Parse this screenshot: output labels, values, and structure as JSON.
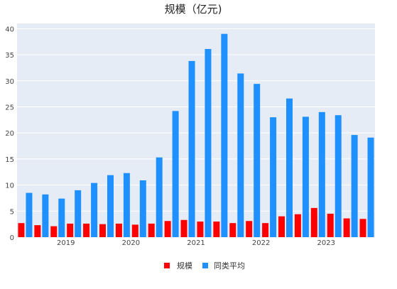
{
  "chart_data": {
    "type": "bar",
    "title": "规模（亿元)",
    "xlabel": "",
    "ylabel": "",
    "ylim": [
      0,
      41
    ],
    "yticks": [
      0,
      5,
      10,
      15,
      20,
      25,
      30,
      35,
      40
    ],
    "year_labels": [
      "2019",
      "2020",
      "2021",
      "2022",
      "2023"
    ],
    "year_label_after_index": [
      2,
      6,
      10,
      14,
      18
    ],
    "grid": true,
    "legend_position": "bottom-center",
    "series": [
      {
        "name": "规模",
        "color": "#ff0000",
        "values": [
          2.7,
          2.3,
          2.1,
          2.6,
          2.6,
          2.5,
          2.6,
          2.4,
          2.6,
          3.1,
          3.3,
          3.0,
          3.0,
          2.7,
          3.1,
          2.7,
          4.0,
          4.4,
          5.6,
          4.5,
          3.6,
          3.5
        ]
      },
      {
        "name": "同类平均",
        "color": "#1e90ff",
        "values": [
          8.5,
          8.2,
          7.4,
          9.0,
          10.4,
          11.9,
          12.3,
          10.9,
          15.3,
          24.2,
          33.8,
          36.1,
          39.0,
          31.4,
          29.4,
          23.0,
          26.6,
          23.1,
          24.0,
          23.4,
          19.6,
          19.1
        ]
      }
    ]
  },
  "legend": {
    "item1": "规模",
    "item2": "同类平均"
  }
}
